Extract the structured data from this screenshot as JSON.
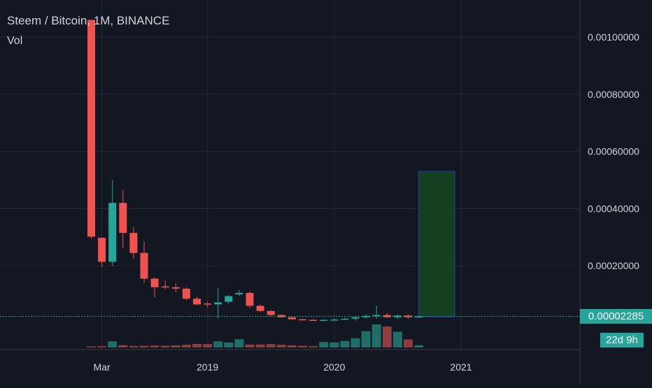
{
  "header": {
    "title": "Steem / Bitcoin, 1M, BINANCE",
    "volume_label": "Vol"
  },
  "price_axis": {
    "ticks": [
      "0.00100000",
      "0.00080000",
      "0.00060000",
      "0.00040000",
      "0.00020000"
    ],
    "current_price": "0.00002285",
    "countdown": "22d 9h"
  },
  "time_axis": {
    "ticks": [
      "Mar",
      "2019",
      "2020",
      "2021"
    ]
  },
  "colors": {
    "background": "#131722",
    "up": "#26a69a",
    "down": "#ef5350",
    "vol_up": "#1f6f68",
    "vol_down": "#8c3d40",
    "grid": "#242836",
    "axis_text": "#d1d4dc",
    "projection_fill": "#15401f",
    "projection_border": "#1e3a8a"
  },
  "chart_data": {
    "type": "candlestick",
    "title": "Steem / Bitcoin, 1M, BINANCE",
    "x_unit": "month",
    "ylim": [
      0,
      0.00108
    ],
    "candles": [
      {
        "date": "2018-02",
        "open": 0.00106,
        "high": 0.00106,
        "low": 0.000295,
        "close": 0.000302,
        "volume": 0.5
      },
      {
        "date": "2018-03",
        "open": 0.000298,
        "high": 0.0003,
        "low": 0.000195,
        "close": 0.000214,
        "volume": 0.6
      },
      {
        "date": "2018-04",
        "open": 0.000214,
        "high": 0.0005,
        "low": 0.0002,
        "close": 0.00042,
        "volume": 2.9
      },
      {
        "date": "2018-05",
        "open": 0.00042,
        "high": 0.000465,
        "low": 0.00026,
        "close": 0.000315,
        "volume": 1.1
      },
      {
        "date": "2018-06",
        "open": 0.000315,
        "high": 0.000335,
        "low": 0.000225,
        "close": 0.000245,
        "volume": 0.7
      },
      {
        "date": "2018-07",
        "open": 0.000245,
        "high": 0.000285,
        "low": 0.00014,
        "close": 0.000155,
        "volume": 0.8
      },
      {
        "date": "2018-08",
        "open": 0.000155,
        "high": 0.00016,
        "low": 9e-05,
        "close": 0.000125,
        "volume": 0.9
      },
      {
        "date": "2018-09",
        "open": 0.000128,
        "high": 0.000148,
        "low": 0.000118,
        "close": 0.000125,
        "volume": 0.8
      },
      {
        "date": "2018-10",
        "open": 0.000125,
        "high": 0.00014,
        "low": 0.000108,
        "close": 0.00012,
        "volume": 1.0
      },
      {
        "date": "2018-11",
        "open": 0.00012,
        "high": 0.000125,
        "low": 8e-05,
        "close": 8.5e-05,
        "volume": 1.3
      },
      {
        "date": "2018-12",
        "open": 8.5e-05,
        "high": 9.2e-05,
        "low": 6.2e-05,
        "close": 6.5e-05,
        "volume": 1.7
      },
      {
        "date": "2019-01",
        "open": 6.8e-05,
        "high": 7.5e-05,
        "low": 5.5e-05,
        "close": 6.5e-05,
        "volume": 1.6
      },
      {
        "date": "2019-02",
        "open": 6.5e-05,
        "high": 0.000125,
        "low": 1.5e-05,
        "close": 7.2e-05,
        "volume": 2.9
      },
      {
        "date": "2019-03",
        "open": 7.4e-05,
        "high": 9.8e-05,
        "low": 6.8e-05,
        "close": 9.4e-05,
        "volume": 2.4
      },
      {
        "date": "2019-04",
        "open": 0.0001,
        "high": 0.000115,
        "low": 9.5e-05,
        "close": 0.000105,
        "volume": 3.9
      },
      {
        "date": "2019-05",
        "open": 0.000105,
        "high": 0.00011,
        "low": 5.2e-05,
        "close": 6e-05,
        "volume": 1.4
      },
      {
        "date": "2019-06",
        "open": 6e-05,
        "high": 6.4e-05,
        "low": 3.8e-05,
        "close": 4.2e-05,
        "volume": 1.4
      },
      {
        "date": "2019-07",
        "open": 4.2e-05,
        "high": 4.5e-05,
        "low": 2.5e-05,
        "close": 2.8e-05,
        "volume": 1.6
      },
      {
        "date": "2019-08",
        "open": 2.8e-05,
        "high": 3e-05,
        "low": 1.8e-05,
        "close": 2e-05,
        "volume": 1.3
      },
      {
        "date": "2019-09",
        "open": 2e-05,
        "high": 2.2e-05,
        "low": 1.2e-05,
        "close": 1.3e-05,
        "volume": 1.0
      },
      {
        "date": "2019-10",
        "open": 1.3e-05,
        "high": 1.5e-05,
        "low": 9e-06,
        "close": 1.1e-05,
        "volume": 0.8
      },
      {
        "date": "2019-11",
        "open": 1.1e-05,
        "high": 1.3e-05,
        "low": 8e-06,
        "close": 9e-06,
        "volume": 0.6
      },
      {
        "date": "2019-12",
        "open": 9e-06,
        "high": 1.2e-05,
        "low": 7e-06,
        "close": 1.1e-05,
        "volume": 2.6
      },
      {
        "date": "2020-01",
        "open": 1.1e-05,
        "high": 1.6e-05,
        "low": 9e-06,
        "close": 1.2e-05,
        "volume": 2.4
      },
      {
        "date": "2020-02",
        "open": 1.2e-05,
        "high": 1.8e-05,
        "low": 1e-05,
        "close": 1.5e-05,
        "volume": 3.1
      },
      {
        "date": "2020-03",
        "open": 1.5e-05,
        "high": 2.5e-05,
        "low": 8e-06,
        "close": 2e-05,
        "volume": 4.4
      },
      {
        "date": "2020-04",
        "open": 2e-05,
        "high": 3e-05,
        "low": 1.5e-05,
        "close": 2.5e-05,
        "volume": 7.8
      },
      {
        "date": "2020-05",
        "open": 2.5e-05,
        "high": 6e-05,
        "low": 1.5e-05,
        "close": 2.8e-05,
        "volume": 11.0
      },
      {
        "date": "2020-06",
        "open": 2.8e-05,
        "high": 3.4e-05,
        "low": 1.8e-05,
        "close": 2e-05,
        "volume": 10.0
      },
      {
        "date": "2020-07",
        "open": 2e-05,
        "high": 3e-05,
        "low": 1.4e-05,
        "close": 2.6e-05,
        "volume": 7.5
      },
      {
        "date": "2020-08",
        "open": 2.6e-05,
        "high": 3e-05,
        "low": 1.5e-05,
        "close": 2e-05,
        "volume": 3.8
      },
      {
        "date": "2020-09",
        "open": 2e-05,
        "high": 2.6e-05,
        "low": 1.8e-05,
        "close": 2.3e-05,
        "volume": 1.1
      }
    ],
    "current_price": 2.285e-05,
    "projection": {
      "start": "2020-09",
      "end": "2021-01",
      "low": 2.2e-05,
      "high": 0.00053
    }
  }
}
